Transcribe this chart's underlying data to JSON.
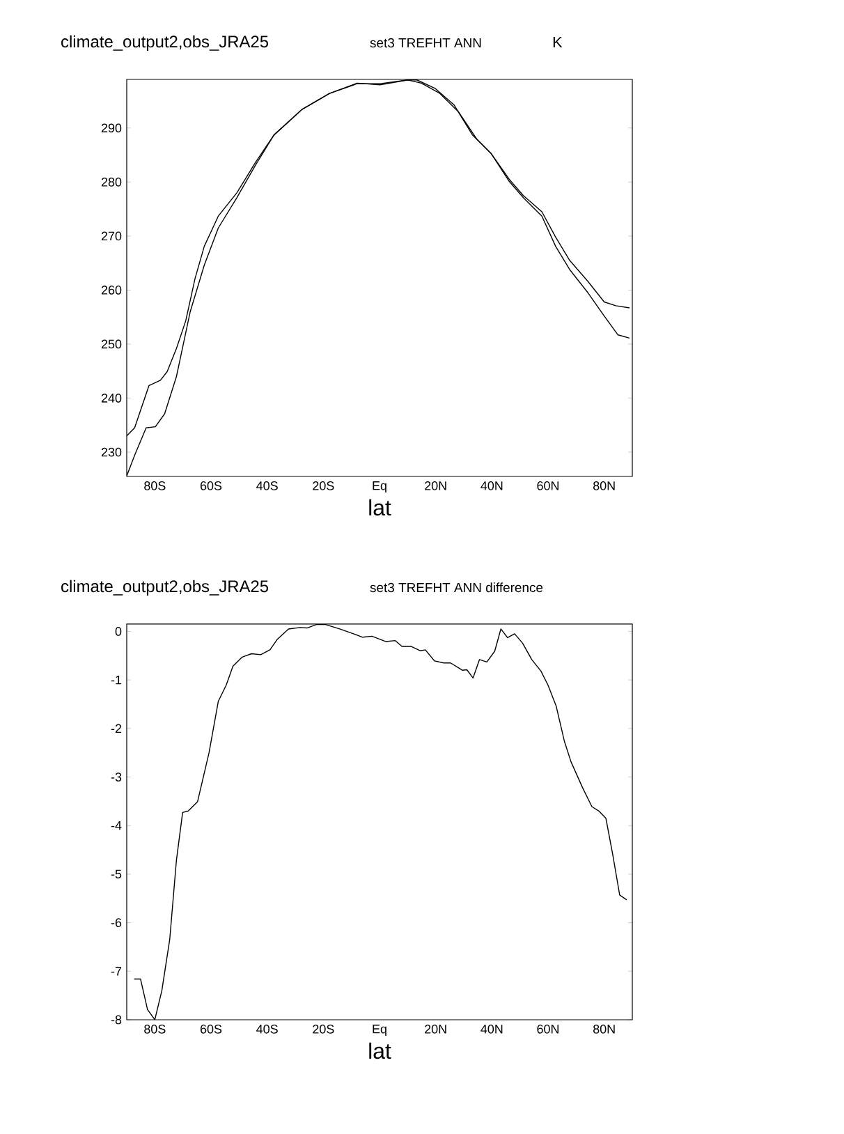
{
  "chart_data": [
    {
      "type": "line",
      "title": "climate_output2,obs_JRA25",
      "subtitle": "set3 TREFHT ANN",
      "ylabel": "K",
      "xlabel": "lat",
      "xlim": [
        -90,
        90
      ],
      "xticks": [
        {
          "value": -80,
          "label": "80S"
        },
        {
          "value": -60,
          "label": "60S"
        },
        {
          "value": -40,
          "label": "40S"
        },
        {
          "value": -20,
          "label": "20S"
        },
        {
          "value": 0,
          "label": "Eq"
        },
        {
          "value": 20,
          "label": "20N"
        },
        {
          "value": 40,
          "label": "40N"
        },
        {
          "value": 60,
          "label": "60N"
        },
        {
          "value": 80,
          "label": "80N"
        }
      ],
      "ylim": [
        225.5,
        299
      ],
      "yticks": [
        230,
        240,
        250,
        260,
        270,
        280,
        290
      ],
      "series": [
        {
          "color": "#000000",
          "x": [
            -90,
            -87.2,
            -82.1,
            -78,
            -75.6,
            -72.3,
            -69,
            -65.7,
            -62.4,
            -57.4,
            -50.8,
            -44.2,
            -37.6,
            -27.7,
            -17.8,
            -8,
            0.2,
            10.1,
            13.3,
            19.9,
            26.5,
            33.1,
            39.7,
            46.2,
            51.2,
            57.8,
            62.7,
            67.7,
            74.2,
            80,
            84.1,
            89
          ],
          "values": [
            233.0,
            234.5,
            242.3,
            243.3,
            244.9,
            249.2,
            254.3,
            262.1,
            268.1,
            273.7,
            278,
            283.6,
            288.7,
            293.4,
            296.4,
            298.2,
            298.2,
            298.9,
            298.9,
            297.3,
            294.3,
            288.7,
            285.3,
            280.5,
            277.5,
            274.5,
            269.8,
            265.5,
            261.6,
            257.8,
            257.1,
            256.7
          ]
        },
        {
          "color": "#000000",
          "x": [
            -90,
            -87.2,
            -83.1,
            -79.8,
            -76.5,
            -72.3,
            -67.4,
            -62.4,
            -57.4,
            -50.8,
            -44.2,
            -37.6,
            -27.7,
            -17.8,
            -8,
            0.2,
            10.1,
            14.9,
            21.5,
            28.1,
            34.7,
            39.7,
            46.2,
            51.2,
            57.8,
            62.7,
            67.7,
            74.2,
            80,
            84.9,
            89
          ],
          "values": [
            225.6,
            229.4,
            234.5,
            234.7,
            237.1,
            244,
            256,
            264.6,
            271.5,
            277.1,
            283.1,
            288.7,
            293.4,
            296.4,
            298.3,
            298,
            298.9,
            298.3,
            296.4,
            293,
            287.9,
            285.3,
            280.1,
            277.1,
            273.7,
            268.1,
            263.8,
            259.5,
            255.2,
            251.7,
            251.1
          ]
        }
      ]
    },
    {
      "type": "line",
      "title": "climate_output2,obs_JRA25",
      "subtitle": "set3 TREFHT ANN difference",
      "xlabel": "lat",
      "xlim": [
        -90,
        90
      ],
      "xticks": [
        {
          "value": -80,
          "label": "80S"
        },
        {
          "value": -60,
          "label": "60S"
        },
        {
          "value": -40,
          "label": "40S"
        },
        {
          "value": -20,
          "label": "20S"
        },
        {
          "value": 0,
          "label": "Eq"
        },
        {
          "value": 20,
          "label": "20N"
        },
        {
          "value": 40,
          "label": "40N"
        },
        {
          "value": 60,
          "label": "60N"
        },
        {
          "value": 80,
          "label": "80N"
        }
      ],
      "ylim": [
        -8,
        0.15
      ],
      "yticks": [
        -8,
        -7,
        -6,
        -5,
        -4,
        -3,
        -2,
        -1,
        0
      ],
      "series": [
        {
          "color": "#000000",
          "x": [
            -87.4,
            -85.1,
            -82.6,
            -80,
            -77.5,
            -74.7,
            -72.3,
            -70.1,
            -68.1,
            -64.8,
            -60.7,
            -57.4,
            -54.6,
            -52.2,
            -48.9,
            -45.6,
            -42.3,
            -39,
            -36.5,
            -32.4,
            -28.3,
            -25.8,
            -22.5,
            -19.2,
            -14.2,
            -9.3,
            -6,
            -2.7,
            2.3,
            5.6,
            8,
            11.3,
            14.6,
            16.3,
            19.6,
            22.9,
            25.3,
            29.5,
            31.1,
            33.3,
            35.6,
            38.2,
            41,
            43.2,
            45.6,
            48.1,
            50.9,
            54.2,
            57.5,
            60,
            62.9,
            65.8,
            68.2,
            72.3,
            75.6,
            78.1,
            80.6,
            83.1,
            85.5,
            88
          ],
          "values": [
            -7.16,
            -7.16,
            -7.79,
            -8.0,
            -7.4,
            -6.35,
            -4.71,
            -3.73,
            -3.7,
            -3.51,
            -2.5,
            -1.44,
            -1.11,
            -0.72,
            -0.53,
            -0.46,
            -0.48,
            -0.38,
            -0.17,
            0.05,
            0.08,
            0.07,
            0.14,
            0.14,
            0.05,
            -0.05,
            -0.12,
            -0.1,
            -0.21,
            -0.19,
            -0.31,
            -0.31,
            -0.4,
            -0.38,
            -0.61,
            -0.65,
            -0.65,
            -0.8,
            -0.79,
            -0.96,
            -0.58,
            -0.63,
            -0.41,
            0.05,
            -0.13,
            -0.05,
            -0.24,
            -0.58,
            -0.82,
            -1.11,
            -1.54,
            -2.26,
            -2.69,
            -3.22,
            -3.61,
            -3.7,
            -3.85,
            -4.62,
            -5.43,
            -5.53
          ]
        }
      ]
    }
  ]
}
